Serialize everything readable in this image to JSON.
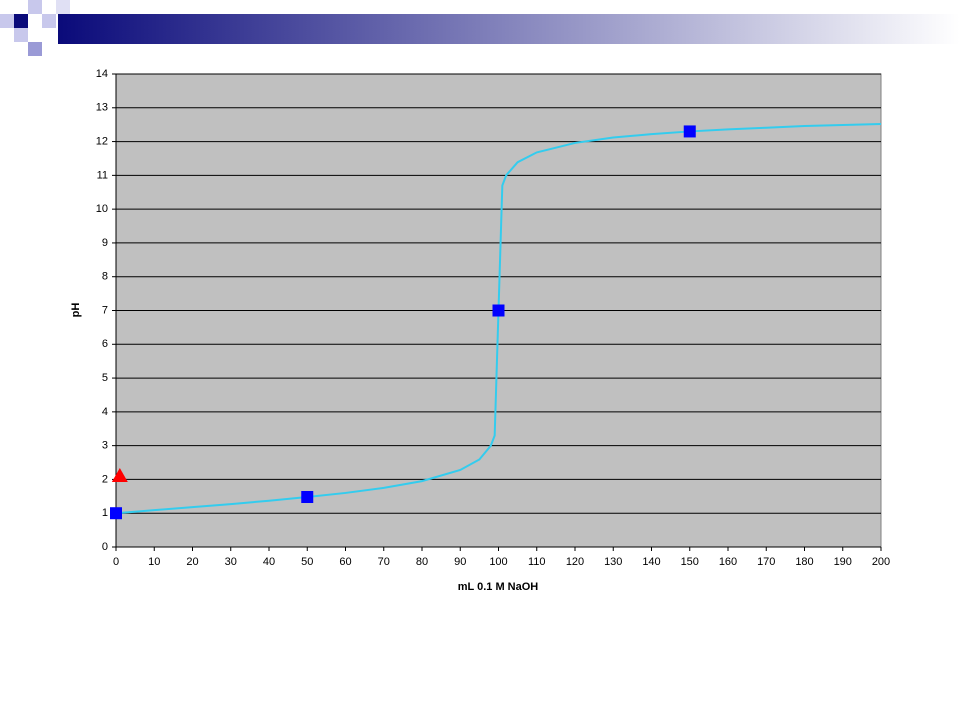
{
  "chart_data": {
    "type": "line",
    "xlabel": "mL 0.1 M NaOH",
    "ylabel": "pH",
    "xlim": [
      0,
      200
    ],
    "ylim": [
      0,
      14
    ],
    "xticks": [
      0,
      10,
      20,
      30,
      40,
      50,
      60,
      70,
      80,
      90,
      100,
      110,
      120,
      130,
      140,
      150,
      160,
      170,
      180,
      190,
      200
    ],
    "yticks": [
      0,
      1,
      2,
      3,
      4,
      5,
      6,
      7,
      8,
      9,
      10,
      11,
      12,
      13,
      14
    ],
    "grid": true,
    "background": "#c0c0c0",
    "series": [
      {
        "mode": "line",
        "color": "#33ccee",
        "x": [
          0,
          10,
          20,
          30,
          40,
          50,
          60,
          70,
          80,
          90,
          95,
          98,
          99,
          100,
          101,
          102,
          105,
          110,
          120,
          130,
          140,
          150,
          160,
          170,
          180,
          190,
          200
        ],
        "values": [
          1.0,
          1.09,
          1.18,
          1.27,
          1.37,
          1.48,
          1.6,
          1.75,
          1.95,
          2.28,
          2.59,
          3.0,
          3.3,
          7.0,
          10.7,
          11.0,
          11.39,
          11.68,
          11.96,
          12.12,
          12.22,
          12.3,
          12.36,
          12.41,
          12.46,
          12.49,
          12.52
        ]
      },
      {
        "mode": "markers",
        "marker": "square",
        "color": "#0000ff",
        "x": [
          0,
          50,
          100,
          150
        ],
        "values": [
          1.0,
          1.48,
          7.0,
          12.3
        ]
      },
      {
        "mode": "markers",
        "marker": "triangle",
        "color": "#ff0000",
        "x": [
          1
        ],
        "values": [
          2.1
        ]
      }
    ]
  }
}
